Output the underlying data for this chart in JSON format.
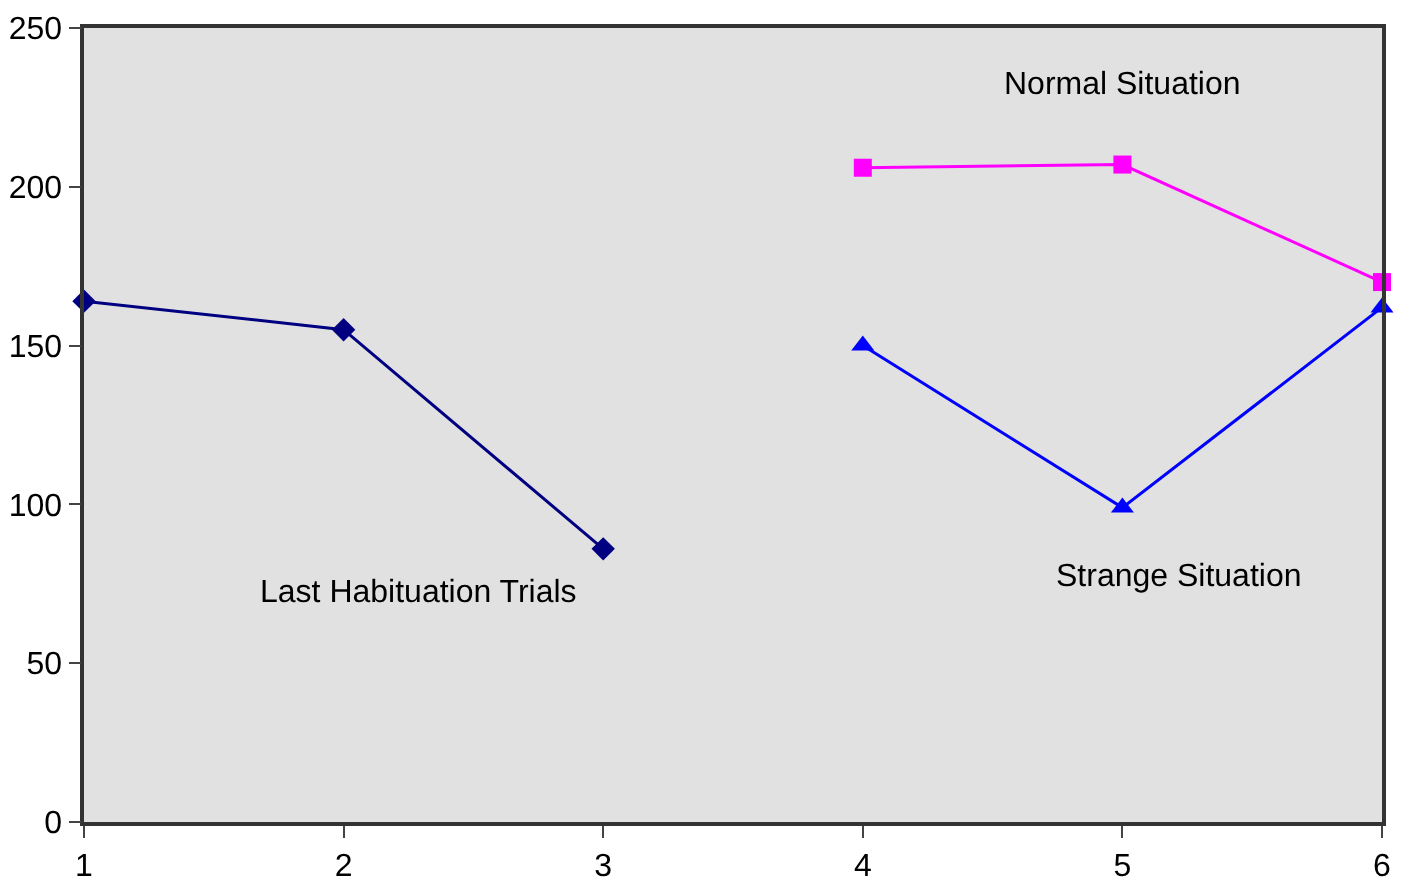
{
  "chart_data": {
    "type": "line",
    "x": [
      1,
      2,
      3,
      4,
      5,
      6
    ],
    "xlim": [
      1,
      6
    ],
    "xticks": [
      1,
      2,
      3,
      4,
      5,
      6
    ],
    "ylim": [
      0,
      250
    ],
    "yticks": [
      0,
      50,
      100,
      150,
      200,
      250
    ],
    "grid": false,
    "legend": false,
    "series": [
      {
        "name": "Last Habituation Trials",
        "color": "#000080",
        "marker": "diamond",
        "values": [
          164,
          155,
          86,
          null,
          null,
          null
        ]
      },
      {
        "name": "Normal Situation",
        "color": "#ff00ff",
        "marker": "square",
        "values": [
          null,
          null,
          null,
          206,
          207,
          170
        ]
      },
      {
        "name": "Strange Situation",
        "color": "#0000ff",
        "marker": "triangle",
        "values": [
          null,
          null,
          null,
          150,
          99,
          162
        ]
      }
    ]
  }
}
